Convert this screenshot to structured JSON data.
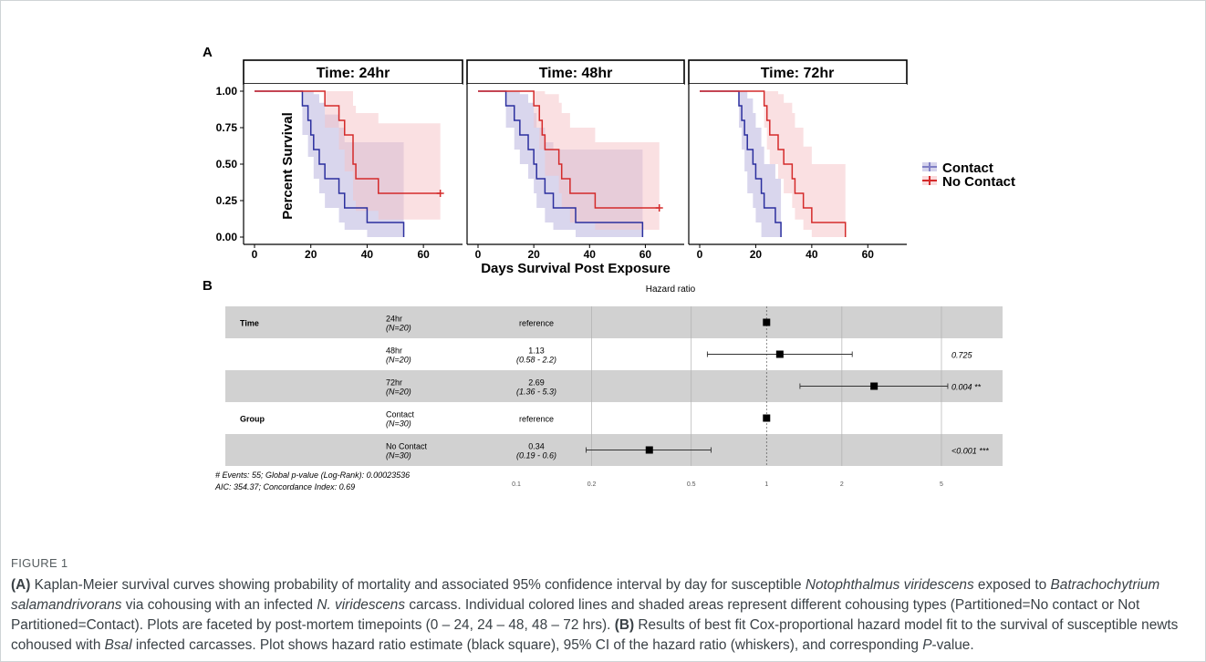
{
  "panel_a": {
    "label": "A",
    "facets": [
      "Time: 24hr",
      "Time: 48hr",
      "Time: 72hr"
    ],
    "ylabel": "Percent Survival",
    "xlabel": "Days Survival Post Exposure",
    "y_ticks": [
      "1.00",
      "0.75",
      "0.50",
      "0.25",
      "0.00"
    ],
    "x_ticks": [
      "0",
      "20",
      "40",
      "60"
    ],
    "legend": [
      "Contact",
      "No Contact"
    ]
  },
  "panel_b": {
    "label": "B",
    "title": "Hazard ratio",
    "rows": [
      {
        "group": "Time",
        "level": "24hr",
        "n": "(N=20)",
        "est": "reference",
        "ci": "",
        "p": ""
      },
      {
        "group": "",
        "level": "48hr",
        "n": "(N=20)",
        "est": "1.13",
        "ci": "(0.58 - 2.2)",
        "p": "0.725"
      },
      {
        "group": "",
        "level": "72hr",
        "n": "(N=20)",
        "est": "2.69",
        "ci": "(1.36 - 5.3)",
        "p": "0.004 **"
      },
      {
        "group": "Group",
        "level": "Contact",
        "n": "(N=30)",
        "est": "reference",
        "ci": "",
        "p": ""
      },
      {
        "group": "",
        "level": "No Contact",
        "n": "(N=30)",
        "est": "0.34",
        "ci": "(0.19 - 0.6)",
        "p": "<0.001 ***"
      }
    ],
    "footer1": "# Events: 55; Global p-value (Log-Rank): 0.00023536",
    "footer2": "AIC: 354.37; Concordance Index: 0.69",
    "x_ticks": [
      "0.1",
      "0.2",
      "0.5",
      "1",
      "2",
      "5"
    ]
  },
  "colors": {
    "contact": "#2b2f9e",
    "no_contact": "#d42a2a",
    "contact_fill": "#b9b5df",
    "no_contact_fill": "#f6c2c5",
    "row_shade": "#d1d1d1"
  },
  "chart_data": [
    {
      "type": "line",
      "subtype": "kaplan-meier step",
      "title": "Time: 24hr",
      "xlabel": "Days Survival Post Exposure",
      "ylabel": "Percent Survival",
      "xlim": [
        0,
        70
      ],
      "ylim": [
        0,
        1
      ],
      "series": [
        {
          "name": "Contact",
          "steps": [
            [
              0,
              1
            ],
            [
              17,
              0.9
            ],
            [
              19,
              0.8
            ],
            [
              20,
              0.7
            ],
            [
              21,
              0.6
            ],
            [
              23,
              0.5
            ],
            [
              25,
              0.4
            ],
            [
              30,
              0.3
            ],
            [
              32,
              0.2
            ],
            [
              40,
              0.1
            ],
            [
              53,
              0.0
            ]
          ],
          "upper": [
            [
              0,
              1
            ],
            [
              17,
              1
            ],
            [
              19,
              1
            ],
            [
              21,
              0.98
            ],
            [
              23,
              0.92
            ],
            [
              25,
              0.84
            ],
            [
              30,
              0.75
            ],
            [
              32,
              0.65
            ],
            [
              40,
              0.65
            ],
            [
              53,
              0.65
            ]
          ],
          "lower": [
            [
              0,
              1
            ],
            [
              17,
              0.7
            ],
            [
              19,
              0.55
            ],
            [
              21,
              0.4
            ],
            [
              23,
              0.3
            ],
            [
              25,
              0.2
            ],
            [
              30,
              0.1
            ],
            [
              32,
              0.05
            ],
            [
              40,
              0.0
            ],
            [
              53,
              0.0
            ]
          ]
        },
        {
          "name": "No Contact",
          "steps": [
            [
              0,
              1
            ],
            [
              25,
              0.9
            ],
            [
              30,
              0.8
            ],
            [
              32,
              0.7
            ],
            [
              35,
              0.5
            ],
            [
              36,
              0.4
            ],
            [
              44,
              0.3
            ],
            [
              66,
              0.3
            ]
          ],
          "upper": [
            [
              0,
              1
            ],
            [
              25,
              1
            ],
            [
              30,
              1
            ],
            [
              32,
              1
            ],
            [
              35,
              0.9
            ],
            [
              36,
              0.85
            ],
            [
              44,
              0.78
            ],
            [
              66,
              0.78
            ]
          ],
          "lower": [
            [
              0,
              1
            ],
            [
              25,
              0.75
            ],
            [
              30,
              0.6
            ],
            [
              32,
              0.45
            ],
            [
              35,
              0.25
            ],
            [
              36,
              0.18
            ],
            [
              44,
              0.12
            ],
            [
              66,
              0.12
            ]
          ],
          "censor_end": [
            66,
            0.3
          ]
        }
      ]
    },
    {
      "type": "line",
      "subtype": "kaplan-meier step",
      "title": "Time: 48hr",
      "xlabel": "Days Survival Post Exposure",
      "ylabel": "Percent Survival",
      "xlim": [
        0,
        70
      ],
      "ylim": [
        0,
        1
      ],
      "series": [
        {
          "name": "Contact",
          "steps": [
            [
              0,
              1
            ],
            [
              10,
              0.9
            ],
            [
              13,
              0.8
            ],
            [
              15,
              0.7
            ],
            [
              18,
              0.6
            ],
            [
              20,
              0.5
            ],
            [
              21,
              0.4
            ],
            [
              24,
              0.3
            ],
            [
              27,
              0.2
            ],
            [
              35,
              0.1
            ],
            [
              59,
              0.0
            ]
          ],
          "upper": [
            [
              0,
              1
            ],
            [
              10,
              1
            ],
            [
              13,
              1
            ],
            [
              15,
              0.98
            ],
            [
              18,
              0.92
            ],
            [
              20,
              0.85
            ],
            [
              21,
              0.75
            ],
            [
              24,
              0.65
            ],
            [
              27,
              0.6
            ],
            [
              35,
              0.6
            ],
            [
              59,
              0.6
            ]
          ],
          "lower": [
            [
              0,
              1
            ],
            [
              10,
              0.75
            ],
            [
              13,
              0.6
            ],
            [
              15,
              0.5
            ],
            [
              18,
              0.4
            ],
            [
              20,
              0.3
            ],
            [
              21,
              0.2
            ],
            [
              24,
              0.1
            ],
            [
              27,
              0.05
            ],
            [
              35,
              0.0
            ],
            [
              59,
              0.0
            ]
          ]
        },
        {
          "name": "No Contact",
          "steps": [
            [
              0,
              1
            ],
            [
              20,
              0.9
            ],
            [
              22,
              0.8
            ],
            [
              23,
              0.7
            ],
            [
              24,
              0.6
            ],
            [
              29,
              0.5
            ],
            [
              30,
              0.4
            ],
            [
              33,
              0.3
            ],
            [
              42,
              0.2
            ],
            [
              65,
              0.2
            ]
          ],
          "upper": [
            [
              0,
              1
            ],
            [
              20,
              1
            ],
            [
              22,
              1
            ],
            [
              24,
              0.98
            ],
            [
              29,
              0.92
            ],
            [
              30,
              0.85
            ],
            [
              33,
              0.75
            ],
            [
              42,
              0.65
            ],
            [
              65,
              0.65
            ]
          ],
          "lower": [
            [
              0,
              1
            ],
            [
              20,
              0.75
            ],
            [
              22,
              0.6
            ],
            [
              24,
              0.42
            ],
            [
              29,
              0.3
            ],
            [
              30,
              0.2
            ],
            [
              33,
              0.1
            ],
            [
              42,
              0.05
            ],
            [
              65,
              0.05
            ]
          ],
          "censor_end": [
            65,
            0.2
          ]
        }
      ]
    },
    {
      "type": "line",
      "subtype": "kaplan-meier step",
      "title": "Time: 72hr",
      "xlabel": "Days Survival Post Exposure",
      "ylabel": "Percent Survival",
      "xlim": [
        0,
        70
      ],
      "ylim": [
        0,
        1
      ],
      "series": [
        {
          "name": "Contact",
          "steps": [
            [
              0,
              1
            ],
            [
              14,
              0.9
            ],
            [
              15,
              0.8
            ],
            [
              16,
              0.7
            ],
            [
              17,
              0.6
            ],
            [
              19,
              0.5
            ],
            [
              20,
              0.4
            ],
            [
              22,
              0.3
            ],
            [
              23,
              0.2
            ],
            [
              27,
              0.1
            ],
            [
              29,
              0.0
            ]
          ],
          "upper": [
            [
              0,
              1
            ],
            [
              14,
              1
            ],
            [
              16,
              1
            ],
            [
              17,
              0.95
            ],
            [
              19,
              0.85
            ],
            [
              20,
              0.75
            ],
            [
              22,
              0.62
            ],
            [
              23,
              0.5
            ],
            [
              27,
              0.4
            ],
            [
              29,
              0.4
            ]
          ],
          "lower": [
            [
              0,
              1
            ],
            [
              14,
              0.75
            ],
            [
              15,
              0.6
            ],
            [
              16,
              0.45
            ],
            [
              17,
              0.3
            ],
            [
              19,
              0.2
            ],
            [
              20,
              0.1
            ],
            [
              22,
              0.0
            ],
            [
              29,
              0.0
            ]
          ]
        },
        {
          "name": "No Contact",
          "steps": [
            [
              0,
              1
            ],
            [
              23,
              0.9
            ],
            [
              24,
              0.8
            ],
            [
              25,
              0.7
            ],
            [
              28,
              0.6
            ],
            [
              30,
              0.5
            ],
            [
              33,
              0.4
            ],
            [
              34,
              0.3
            ],
            [
              37,
              0.2
            ],
            [
              40,
              0.1
            ],
            [
              52,
              0.0
            ]
          ],
          "upper": [
            [
              0,
              1
            ],
            [
              23,
              1
            ],
            [
              25,
              1
            ],
            [
              28,
              0.98
            ],
            [
              30,
              0.92
            ],
            [
              33,
              0.85
            ],
            [
              34,
              0.75
            ],
            [
              37,
              0.62
            ],
            [
              40,
              0.5
            ],
            [
              52,
              0.5
            ]
          ],
          "lower": [
            [
              0,
              1
            ],
            [
              23,
              0.75
            ],
            [
              24,
              0.6
            ],
            [
              25,
              0.5
            ],
            [
              28,
              0.4
            ],
            [
              30,
              0.3
            ],
            [
              33,
              0.2
            ],
            [
              34,
              0.12
            ],
            [
              37,
              0.05
            ],
            [
              40,
              0.0
            ],
            [
              52,
              0.0
            ]
          ]
        }
      ]
    },
    {
      "type": "forest",
      "title": "Hazard ratio",
      "x_scale": "log",
      "xlim": [
        0.1,
        5
      ],
      "reference_line": 1,
      "points": [
        {
          "label": "24hr",
          "hr": 1,
          "lo": null,
          "hi": null
        },
        {
          "label": "48hr",
          "hr": 1.13,
          "lo": 0.58,
          "hi": 2.2
        },
        {
          "label": "72hr",
          "hr": 2.69,
          "lo": 1.36,
          "hi": 5.3
        },
        {
          "label": "Contact",
          "hr": 1,
          "lo": null,
          "hi": null
        },
        {
          "label": "No Contact",
          "hr": 0.34,
          "lo": 0.19,
          "hi": 0.6
        }
      ]
    }
  ],
  "caption": {
    "label": "FIGURE 1",
    "text_html": "<b>(A)</b> Kaplan-Meier survival curves showing probability of mortality and associated 95% confidence interval by day for susceptible <i>Notophthalmus viridescens</i> exposed to <i>Batrachochytrium salamandrivorans</i> via cohousing with an infected <i>N. viridescens</i> carcass. Individual colored lines and shaded areas represent different cohousing types (Partitioned=No contact or Not Partitioned=Contact). Plots are faceted by post-mortem timepoints (0 – 24, 24 – 48, 48 – 72 hrs). <b>(B)</b> Results of best fit Cox-proportional hazard model fit to the survival of susceptible newts cohoused with <i>Bsal</i> infected carcasses. Plot shows hazard ratio estimate (black square), 95% CI of the hazard ratio (whiskers), and corresponding <i>P</i>-value."
  }
}
